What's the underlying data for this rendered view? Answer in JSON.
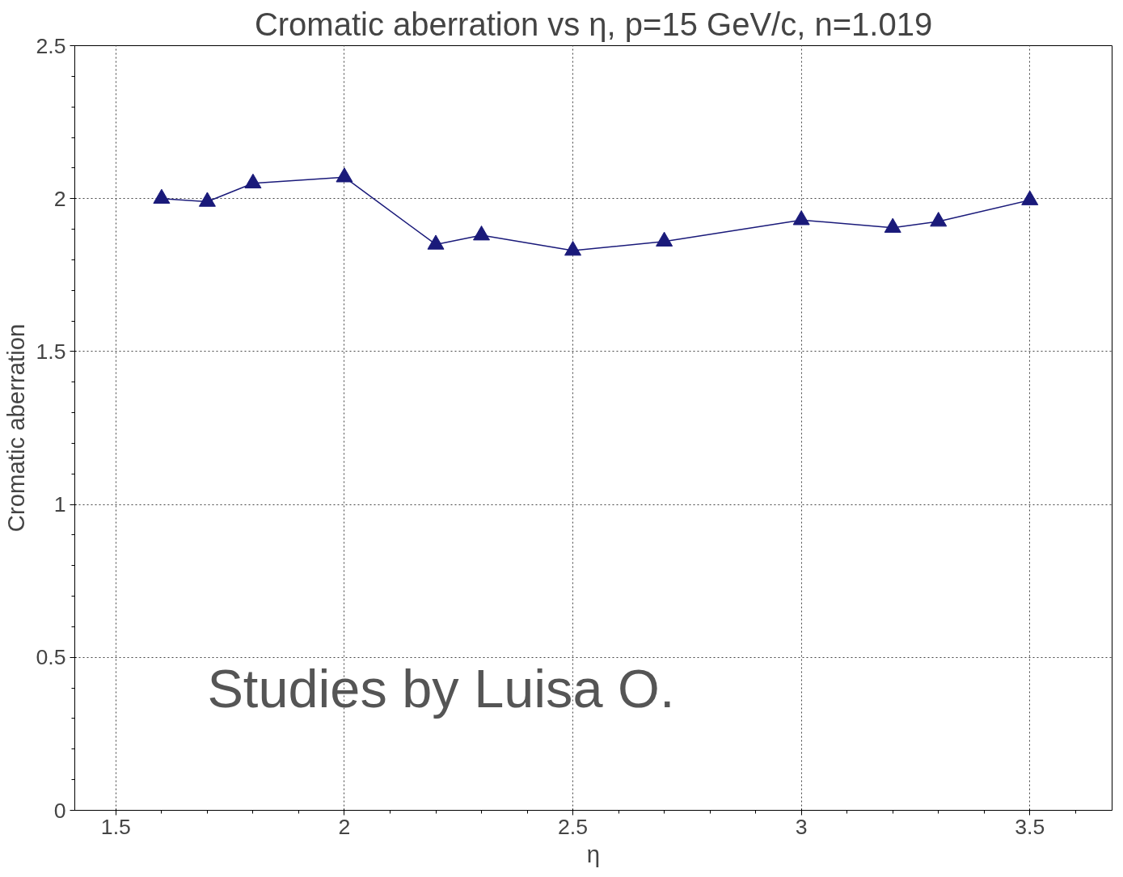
{
  "chart_data": {
    "type": "line",
    "title": "Cromatic aberration vs η, p=15 GeV/c, n=1.019",
    "xlabel": "η",
    "ylabel": "Cromatic aberration",
    "x": [
      1.6,
      1.7,
      1.8,
      2.0,
      2.2,
      2.3,
      2.5,
      2.7,
      3.0,
      3.2,
      3.3,
      3.5
    ],
    "series": [
      {
        "color": "#1a1a7a",
        "values": [
          2.0,
          1.99,
          2.05,
          2.07,
          1.85,
          1.88,
          1.83,
          1.86,
          1.93,
          1.905,
          1.925,
          1.995
        ]
      }
    ],
    "xlim": [
      1.41,
      3.68
    ],
    "ylim": [
      0,
      2.5
    ],
    "xticks": [
      1.5,
      2,
      2.5,
      3,
      3.5
    ],
    "yticks": [
      0,
      0.5,
      1,
      1.5,
      2,
      2.5
    ],
    "grid": true,
    "marker": "triangle",
    "line_style": "solid",
    "annotations": [
      "Studies by Luisa O."
    ]
  }
}
